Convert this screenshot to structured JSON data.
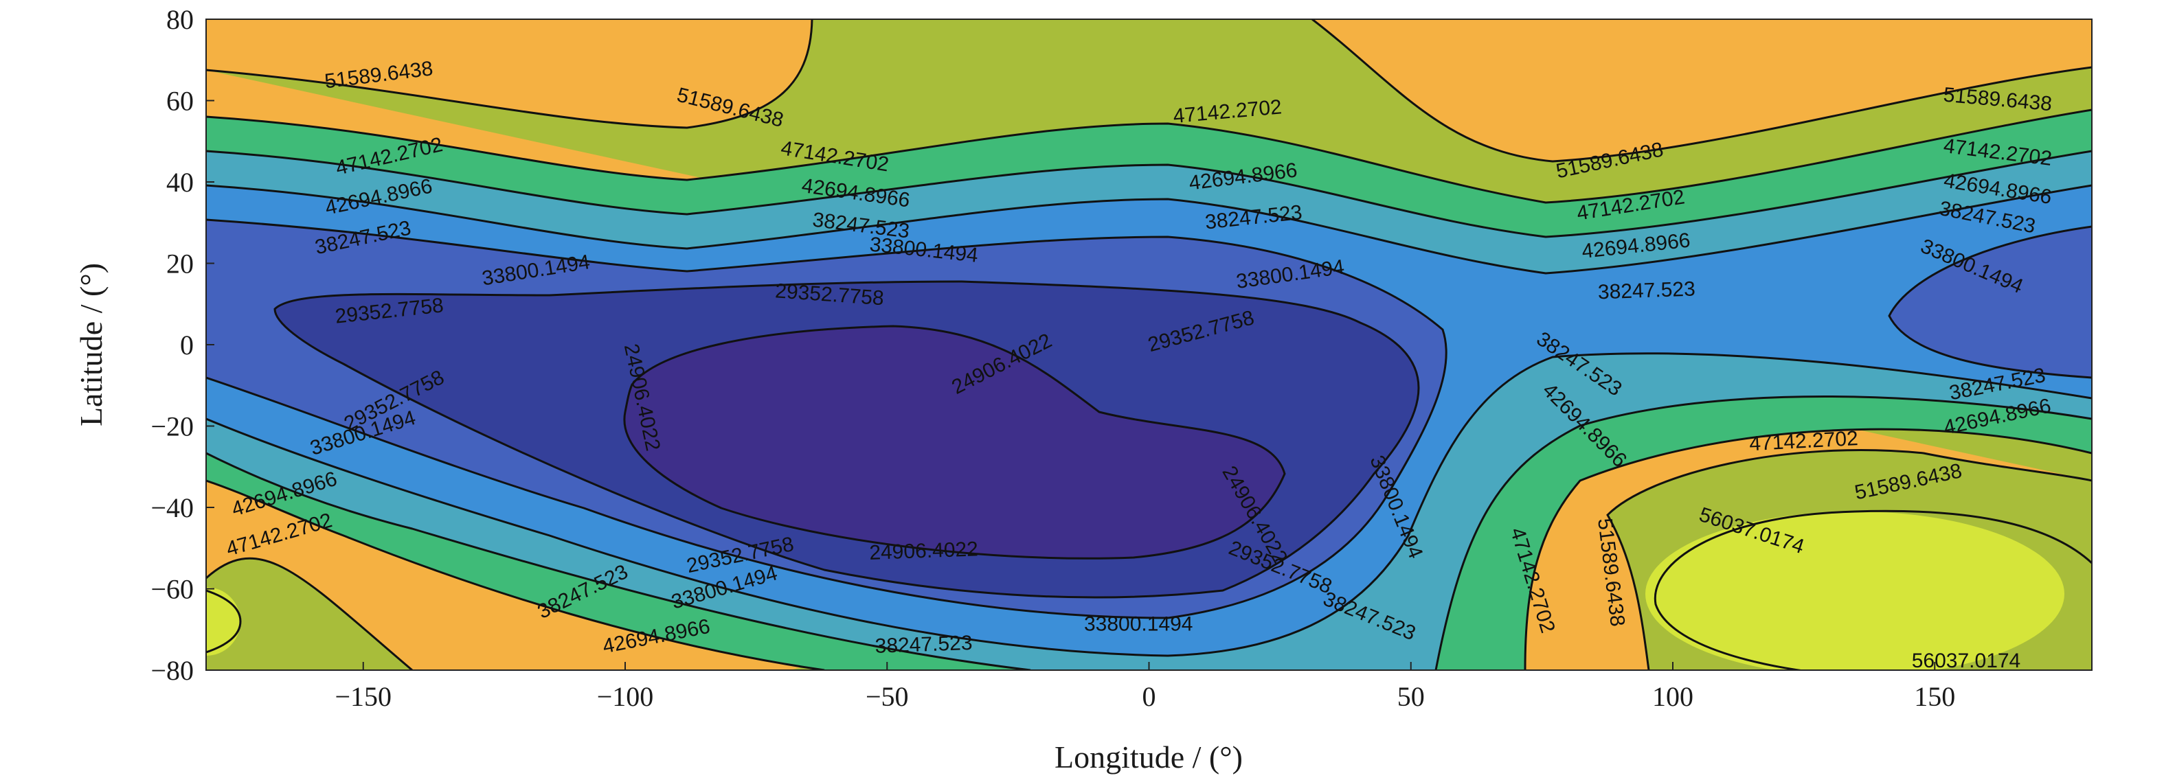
{
  "chart_data": {
    "type": "contour",
    "title": "",
    "xlabel": "Longitude / (°)",
    "ylabel": "Latitude / (°)",
    "xlim": [
      -180,
      180
    ],
    "ylim": [
      -80,
      80
    ],
    "x_ticks": [
      {
        "value": -150,
        "label": "−150"
      },
      {
        "value": -100,
        "label": "−100"
      },
      {
        "value": -50,
        "label": "−50"
      },
      {
        "value": 0,
        "label": "0"
      },
      {
        "value": 50,
        "label": "50"
      },
      {
        "value": 100,
        "label": "100"
      },
      {
        "value": 150,
        "label": "150"
      }
    ],
    "y_ticks": [
      {
        "value": 80,
        "label": "80"
      },
      {
        "value": 60,
        "label": "60"
      },
      {
        "value": 40,
        "label": "40"
      },
      {
        "value": 20,
        "label": "20"
      },
      {
        "value": 0,
        "label": "0"
      },
      {
        "value": -20,
        "label": "−20"
      },
      {
        "value": -40,
        "label": "−40"
      },
      {
        "value": -60,
        "label": "−60"
      },
      {
        "value": -80,
        "label": "−80"
      }
    ],
    "levels": [
      24906.4022,
      29352.7758,
      33800.1494,
      38247.523,
      42694.8966,
      47142.2702,
      51589.6438,
      56037.0174
    ],
    "band_colors": [
      "#3e2f8a",
      "#34409a",
      "#4462be",
      "#3c8fd8",
      "#4aa8bf",
      "#3fbb78",
      "#a8bd3a",
      "#f5b142",
      "#d5e53a"
    ],
    "grid": false,
    "contour_labels": [
      {
        "text": "51589.6438",
        "lon": -147,
        "lat": 66,
        "angle": 7
      },
      {
        "text": "51589.6438",
        "lon": -80,
        "lat": 58,
        "angle": -14
      },
      {
        "text": "47142.2702",
        "lon": -145,
        "lat": 46,
        "angle": 13
      },
      {
        "text": "47142.2702",
        "lon": -60,
        "lat": 46,
        "angle": -9
      },
      {
        "text": "47142.2702",
        "lon": 15,
        "lat": 57,
        "angle": 5
      },
      {
        "text": "51589.6438",
        "lon": 88,
        "lat": 45,
        "angle": 12
      },
      {
        "text": "51589.6438",
        "lon": 162,
        "lat": 60,
        "angle": -5
      },
      {
        "text": "42694.8966",
        "lon": -147,
        "lat": 36,
        "angle": 12
      },
      {
        "text": "42694.8966",
        "lon": -56,
        "lat": 37,
        "angle": -8
      },
      {
        "text": "42694.8966",
        "lon": 18,
        "lat": 41,
        "angle": 7
      },
      {
        "text": "47142.2702",
        "lon": 92,
        "lat": 34,
        "angle": 9
      },
      {
        "text": "47142.2702",
        "lon": 162,
        "lat": 47,
        "angle": -7
      },
      {
        "text": "38247.523",
        "lon": -150,
        "lat": 26,
        "angle": 12
      },
      {
        "text": "38247.523",
        "lon": -55,
        "lat": 29,
        "angle": -7
      },
      {
        "text": "38247.523",
        "lon": 20,
        "lat": 31,
        "angle": 6
      },
      {
        "text": "42694.8966",
        "lon": 93,
        "lat": 24,
        "angle": 6
      },
      {
        "text": "42694.8966",
        "lon": 162,
        "lat": 38,
        "angle": -9
      },
      {
        "text": "33800.1494",
        "lon": -117,
        "lat": 18,
        "angle": 9
      },
      {
        "text": "33800.1494",
        "lon": -43,
        "lat": 23,
        "angle": -6
      },
      {
        "text": "33800.1494",
        "lon": 27,
        "lat": 17,
        "angle": 8
      },
      {
        "text": "38247.523",
        "lon": 95,
        "lat": 13,
        "angle": 2
      },
      {
        "text": "38247.523",
        "lon": 160,
        "lat": 31,
        "angle": -11
      },
      {
        "text": "33800.1494",
        "lon": 157,
        "lat": 19,
        "angle": -23
      },
      {
        "text": "29352.7758",
        "lon": -145,
        "lat": 8,
        "angle": 6
      },
      {
        "text": "29352.7758",
        "lon": -61,
        "lat": 12,
        "angle": -4
      },
      {
        "text": "29352.7758",
        "lon": 10,
        "lat": 3,
        "angle": 15
      },
      {
        "text": "24906.4022",
        "lon": -28,
        "lat": -5,
        "angle": 27
      },
      {
        "text": "24906.4022",
        "lon": -97,
        "lat": -13,
        "angle": -78
      },
      {
        "text": "29352.7758",
        "lon": -144,
        "lat": -14,
        "angle": 27
      },
      {
        "text": "33800.1494",
        "lon": -150,
        "lat": -22,
        "angle": 17
      },
      {
        "text": "38247.523",
        "lon": 82,
        "lat": -5,
        "angle": -34
      },
      {
        "text": "38247.523",
        "lon": 162,
        "lat": -10,
        "angle": 11
      },
      {
        "text": "42694.8966",
        "lon": 83,
        "lat": -20,
        "angle": -45
      },
      {
        "text": "42694.8966",
        "lon": 162,
        "lat": -18,
        "angle": 12
      },
      {
        "text": "47142.2702",
        "lon": 125,
        "lat": -24,
        "angle": 3
      },
      {
        "text": "33800.1494",
        "lon": 47,
        "lat": -40,
        "angle": -68
      },
      {
        "text": "24906.4022",
        "lon": 20,
        "lat": -42,
        "angle": -60
      },
      {
        "text": "29352.7758",
        "lon": 25,
        "lat": -55,
        "angle": -22
      },
      {
        "text": "51589.6438",
        "lon": 145,
        "lat": -34,
        "angle": 12
      },
      {
        "text": "56037.0174",
        "lon": 115,
        "lat": -46,
        "angle": -18
      },
      {
        "text": "51589.6438",
        "lon": 88,
        "lat": -56,
        "angle": -83
      },
      {
        "text": "47142.2702",
        "lon": 73,
        "lat": -58,
        "angle": -73
      },
      {
        "text": "38247.523",
        "lon": 42,
        "lat": -67,
        "angle": -22
      },
      {
        "text": "33800.1494",
        "lon": -2,
        "lat": -69,
        "angle": 0
      },
      {
        "text": "38247.523",
        "lon": -43,
        "lat": -74,
        "angle": 2
      },
      {
        "text": "24906.4022",
        "lon": -43,
        "lat": -51,
        "angle": 2
      },
      {
        "text": "29352.7758",
        "lon": -78,
        "lat": -52,
        "angle": 12
      },
      {
        "text": "33800.1494",
        "lon": -81,
        "lat": -60,
        "angle": 16
      },
      {
        "text": "38247.523",
        "lon": -108,
        "lat": -61,
        "angle": 26
      },
      {
        "text": "42694.8966",
        "lon": -94,
        "lat": -72,
        "angle": 11
      },
      {
        "text": "42694.8966",
        "lon": -165,
        "lat": -37,
        "angle": 17
      },
      {
        "text": "47142.2702",
        "lon": -166,
        "lat": -47,
        "angle": 16
      },
      {
        "text": "56037.0174",
        "lon": 156,
        "lat": -78,
        "angle": 0
      }
    ]
  }
}
